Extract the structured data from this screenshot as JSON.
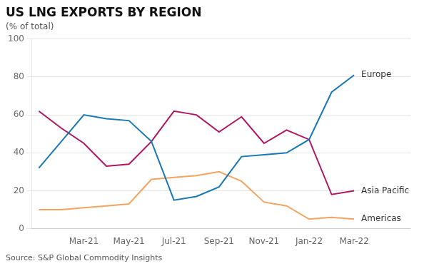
{
  "chart_data": {
    "type": "line",
    "title": "US LNG EXPORTS BY REGION",
    "subtitle": "(% of total)",
    "source": "Source: S&P Global Commodity Insights",
    "x": [
      0,
      1,
      2,
      3,
      4,
      5,
      6,
      7,
      8,
      9,
      10,
      11,
      12,
      13,
      14
    ],
    "series": [
      {
        "name": "Europe",
        "color": "#1878b4",
        "values": [
          32,
          46,
          60,
          58,
          57,
          46,
          15,
          17,
          22,
          38,
          39,
          40,
          47,
          72,
          81
        ]
      },
      {
        "name": "Asia Pacific",
        "color": "#b01560",
        "values": [
          62,
          53,
          45,
          33,
          34,
          46,
          62,
          60,
          51,
          59,
          45,
          52,
          47,
          18,
          20
        ]
      },
      {
        "name": "Americas",
        "color": "#f4a460",
        "values": [
          10,
          10,
          11,
          12,
          13,
          26,
          27,
          28,
          30,
          25,
          14,
          12,
          5,
          6,
          5
        ]
      }
    ],
    "xlim": [
      -0.3,
      16.5
    ],
    "xticks": [
      {
        "value": 2,
        "label": "Mar-21"
      },
      {
        "value": 4,
        "label": "May-21"
      },
      {
        "value": 6,
        "label": "Jul-21"
      },
      {
        "value": 8,
        "label": "Sep-21"
      },
      {
        "value": 10,
        "label": "Nov-21"
      },
      {
        "value": 12,
        "label": "Jan-22"
      },
      {
        "value": 14,
        "label": "Mar-22"
      }
    ],
    "ylim": [
      0,
      100
    ],
    "yticks": [
      0,
      20,
      40,
      60,
      80,
      100
    ],
    "grid": "y"
  }
}
